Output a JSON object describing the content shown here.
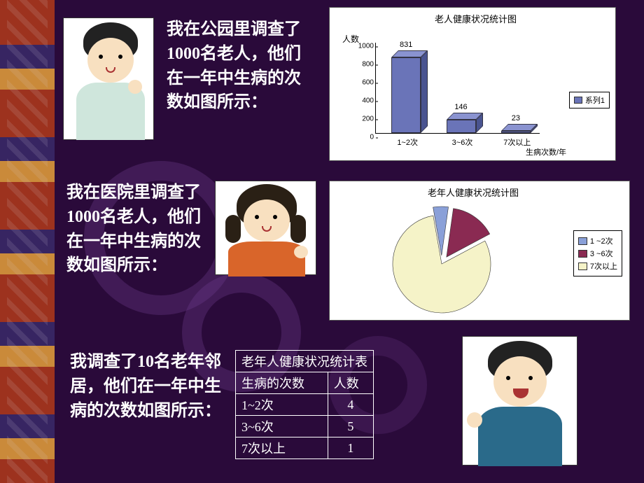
{
  "background_color": "#2a0a3a",
  "section1": {
    "caption": "我在公园里调查了1000名老人，他们在一年中生病的次数如图所示：",
    "avatar": "boy-left"
  },
  "section2": {
    "caption": "我在医院里调查了1000名老人，他们在一年中生病的次数如图所示：",
    "avatar": "girl"
  },
  "section3": {
    "caption": "我调查了10名老年邻居，他们在一年中生病的次数如图所示：",
    "avatar": "boy-right"
  },
  "bar_chart": {
    "type": "bar",
    "title": "老人健康状况统计图",
    "y_axis_label": "人数",
    "x_axis_label": "生病次数/年",
    "categories": [
      "1~2次",
      "3~6次",
      "7次以上"
    ],
    "values": [
      831,
      146,
      23
    ],
    "ylim": [
      0,
      1000
    ],
    "yticks": [
      0,
      200,
      400,
      600,
      800,
      1000
    ],
    "bar_color_front": "#6a74b8",
    "bar_color_top": "#8a93d0",
    "bar_color_side": "#4a5490",
    "legend_label": "系列1",
    "legend_color": "#6a74b8",
    "title_fontsize": 13,
    "label_fontsize": 11,
    "background_color": "#ffffff",
    "border_color": "#555555"
  },
  "pie_chart": {
    "type": "pie",
    "title": "老年人健康状况统计图",
    "slices": [
      {
        "label": "1 ~2次",
        "value": 5,
        "color": "#8aa0d8"
      },
      {
        "label": "3 ~6次",
        "value": 15,
        "color": "#8a2a52"
      },
      {
        "label": "7次以上",
        "value": 80,
        "color": "#f5f3c8"
      }
    ],
    "title_fontsize": 13,
    "label_fontsize": 11,
    "background_color": "#ffffff",
    "border_color": "#555555",
    "explode_slices": [
      0,
      1
    ],
    "start_angle_deg": -100
  },
  "table": {
    "type": "table",
    "title": "老年人健康状况统计表",
    "columns": [
      "生病的次数",
      "人数"
    ],
    "rows": [
      [
        "1~2次",
        4
      ],
      [
        "3~6次",
        5
      ],
      [
        "7次以上",
        1
      ]
    ],
    "text_color": "#ffffff",
    "border_color": "#ffffff",
    "title_fontsize": 18,
    "cell_fontsize": 18,
    "column_alignment": [
      "left",
      "center"
    ]
  }
}
